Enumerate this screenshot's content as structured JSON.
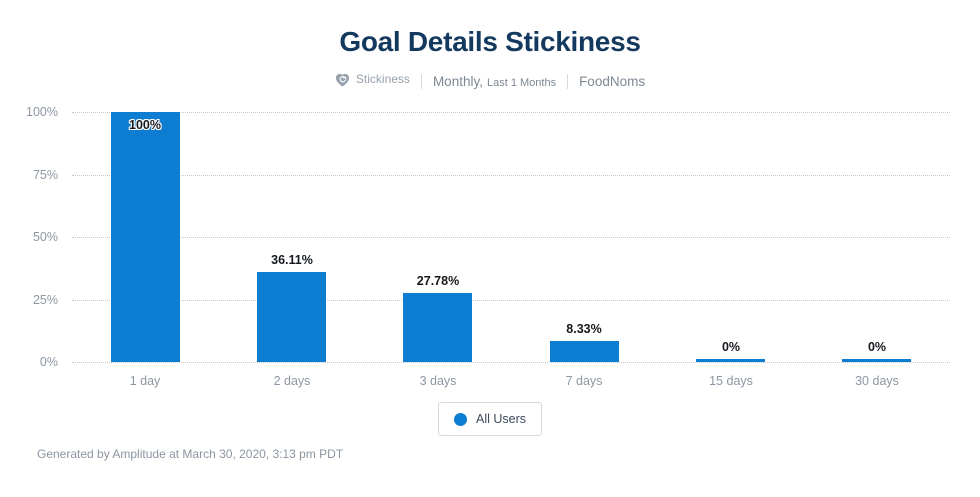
{
  "header": {
    "title": "Goal Details Stickiness",
    "chart_type": "Stickiness",
    "interval": "Monthly,",
    "date_range": "Last 1 Months",
    "project": "FoodNoms"
  },
  "legend": {
    "label": "All Users"
  },
  "footer": {
    "text": "Generated by Amplitude at March 30, 2020, 3:13 pm PDT"
  },
  "colors": {
    "bar": "#0c7dd1",
    "title": "#14395e",
    "axis_text": "#8d97a3",
    "subtitle_text": "#7d8894",
    "gridline": "#c4cad0",
    "value_label": "#15191e",
    "legend_dot": "#0c7dd1"
  },
  "chart_data": {
    "type": "bar",
    "title": "Goal Details Stickiness",
    "categories": [
      "1 day",
      "2 days",
      "3 days",
      "7 days",
      "15 days",
      "30 days"
    ],
    "series": [
      {
        "name": "All Users",
        "values": [
          100,
          36.11,
          27.78,
          8.33,
          0,
          0
        ]
      }
    ],
    "value_labels": [
      "100%",
      "36.11%",
      "27.78%",
      "8.33%",
      "0%",
      "0%"
    ],
    "xlabel": "",
    "ylabel": "",
    "ylim": [
      0,
      100
    ],
    "yticks": [
      "100%",
      "75%",
      "50%",
      "25%",
      "0%"
    ],
    "grid": "horizontal-dotted",
    "legend_position": "bottom-center",
    "bar_color": "#0c7dd1"
  }
}
